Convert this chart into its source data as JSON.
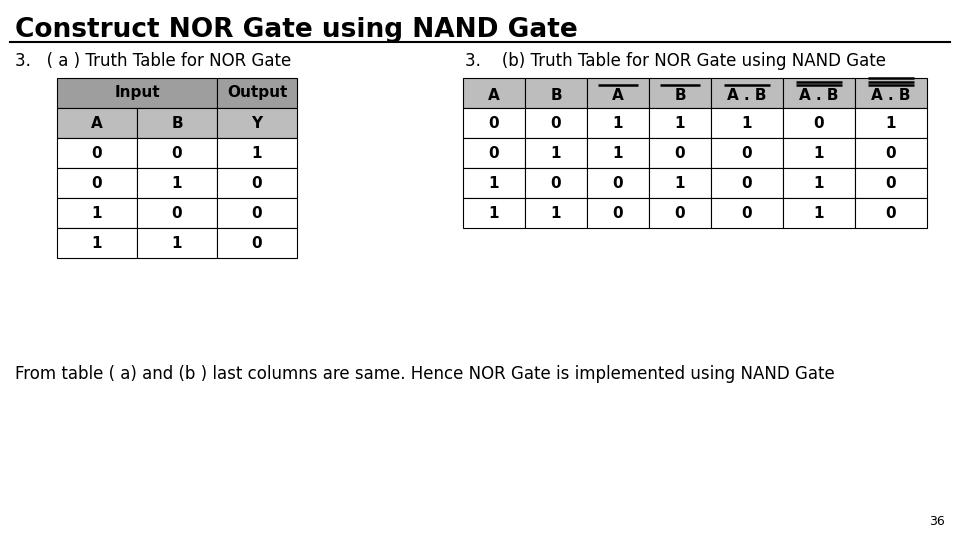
{
  "title": "Construct NOR Gate using NAND Gate",
  "subtitle_left": "3.   ( a ) Truth Table for NOR Gate",
  "subtitle_right": "3.    (b) Truth Table for NOR Gate using NAND Gate",
  "footer": "From table ( a) and (b ) last columns are same. Hence NOR Gate is implemented using NAND Gate",
  "page_number": "36",
  "bg_color": "#ffffff",
  "table_header_bg": "#9e9e9e",
  "table_subheader_bg": "#bdbdbd",
  "table_row_bg": "#ffffff",
  "table_border": "#000000",
  "title_fontsize": 19,
  "subtitle_fontsize": 12,
  "table_fontsize": 11,
  "footer_fontsize": 12,
  "table_a_data": [
    [
      "0",
      "0",
      "1"
    ],
    [
      "0",
      "1",
      "0"
    ],
    [
      "1",
      "0",
      "0"
    ],
    [
      "1",
      "1",
      "0"
    ]
  ],
  "table_b_data": [
    [
      "0",
      "0",
      "1",
      "1",
      "1",
      "0",
      "1"
    ],
    [
      "0",
      "1",
      "1",
      "0",
      "0",
      "1",
      "0"
    ],
    [
      "1",
      "0",
      "0",
      "1",
      "0",
      "1",
      "0"
    ],
    [
      "1",
      "1",
      "0",
      "0",
      "0",
      "1",
      "0"
    ]
  ],
  "col_label_texts": [
    "A",
    "B",
    "A",
    "B",
    "A . B",
    "A . B",
    "A . B"
  ],
  "col_bar_counts": [
    0,
    0,
    1,
    1,
    1,
    2,
    3
  ]
}
